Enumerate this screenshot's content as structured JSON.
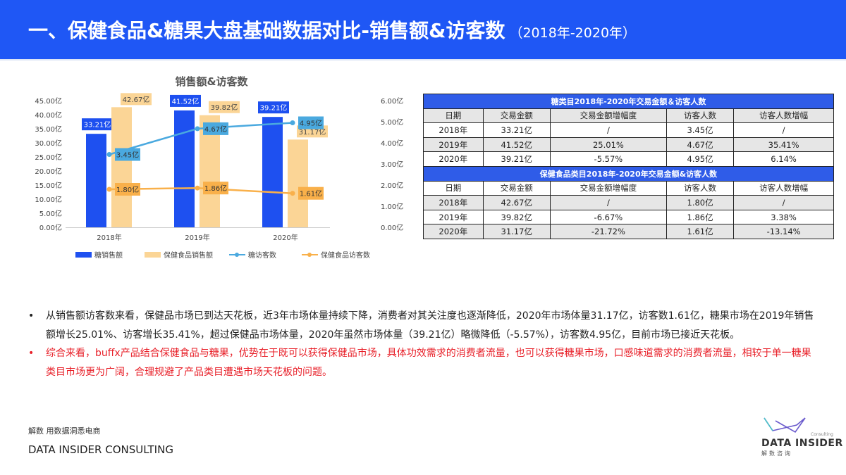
{
  "header": {
    "title": "一、保健食品&糖果大盘基础数据对比-销售额&访客数",
    "subtitle": "（2018年-2020年）"
  },
  "chart_data": {
    "type": "bar+line",
    "title": "销售额&访客数",
    "categories": [
      "2018年",
      "2019年",
      "2020年"
    ],
    "left_axis": {
      "ylim": [
        0,
        45
      ],
      "ticks": [
        "0.00亿",
        "5.00亿",
        "10.00亿",
        "15.00亿",
        "20.00亿",
        "25.00亿",
        "30.00亿",
        "35.00亿",
        "40.00亿",
        "45.00亿"
      ]
    },
    "right_axis": {
      "ylim": [
        0,
        6
      ],
      "ticks": [
        "0.00亿",
        "1.00亿",
        "2.00亿",
        "3.00亿",
        "4.00亿",
        "5.00亿",
        "6.00亿"
      ]
    },
    "series": [
      {
        "name": "糖销售额",
        "type": "bar",
        "axis": "left",
        "color": "#1e50f0",
        "values": [
          33.21,
          41.52,
          39.21
        ],
        "labels": [
          "33.21亿",
          "41.52亿",
          "39.21亿"
        ]
      },
      {
        "name": "保健食品销售额",
        "type": "bar",
        "axis": "left",
        "color": "#fbd596",
        "values": [
          42.67,
          39.82,
          31.17
        ],
        "labels": [
          "42.67亿",
          "39.82亿",
          "31.17亿"
        ]
      },
      {
        "name": "糖访客数",
        "type": "line",
        "axis": "right",
        "color": "#4aa9df",
        "values": [
          3.45,
          4.67,
          4.95
        ],
        "labels": [
          "3.45亿",
          "4.67亿",
          "4.95亿"
        ]
      },
      {
        "name": "保健食品访客数",
        "type": "line",
        "axis": "right",
        "color": "#f9b04a",
        "values": [
          1.8,
          1.86,
          1.61
        ],
        "labels": [
          "1.80亿",
          "1.86亿",
          "1.61亿"
        ]
      }
    ],
    "legend": "bottom"
  },
  "table1": {
    "caption": "糖类目2018年-2020年交易金额＆访客人数",
    "headers": [
      "日期",
      "交易金额",
      "交易金额增幅度",
      "访客人数",
      "访客人数增幅"
    ],
    "rows": [
      [
        "2018年",
        "33.21亿",
        "/",
        "3.45亿",
        "/"
      ],
      [
        "2019年",
        "41.52亿",
        "25.01%",
        "4.67亿",
        "35.41%"
      ],
      [
        "2020年",
        "39.21亿",
        "-5.57%",
        "4.95亿",
        "6.14%"
      ]
    ]
  },
  "table2": {
    "caption": "保健食品类目2018年-2020年交易金额&访客人数",
    "headers": [
      "日期",
      "交易金额",
      "交易金额增幅度",
      "访客人数",
      "访客人数增幅"
    ],
    "rows": [
      [
        "2018年",
        "42.67亿",
        "/",
        "1.80亿",
        "/"
      ],
      [
        "2019年",
        "39.82亿",
        "-6.67%",
        "1.86亿",
        "3.38%"
      ],
      [
        "2020年",
        "31.17亿",
        "-21.72%",
        "1.61亿",
        "-13.14%"
      ]
    ]
  },
  "bullets": [
    "从销售额访客数来看，保健品市场已到达天花板，近3年市场体量持续下降，消费者对其关注度也逐渐降低，2020年市场体量31.17亿，访客数1.61亿，糖果市场在2019年销售额增长25.01%、访客增长35.41%，超过保健品市场体量，2020年虽然市场体量（39.21亿）略微降低（-5.57%），访客数4.95亿，目前市场已接近天花板。",
    "综合来看，buffx产品结合保健食品与糖果，优势在于既可以获得保健品市场，具体功效需求的消费者流量，也可以获得糖果市场，口感味道需求的消费者流量，相较于单一糖果类目市场更为广阔，合理规避了产品类目遭遇市场天花板的问题。"
  ],
  "footer": {
    "slogan": "解数 用数据洞悉电商",
    "brand": "DATA INSIDER CONSULTING"
  },
  "logo": {
    "name": "DATA INSIDER",
    "cn": "解数咨询",
    "sub": "Consulting"
  }
}
